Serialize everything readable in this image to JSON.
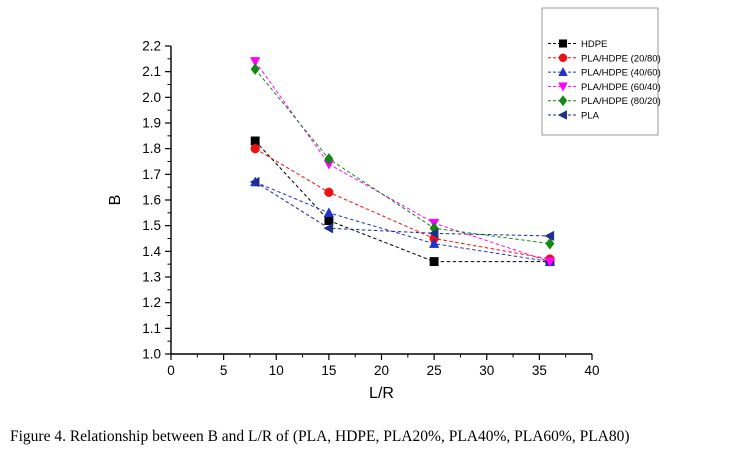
{
  "caption": "Figure 4. Relationship between B and L/R of (PLA, HDPE, PLA20%, PLA40%, PLA60%, PLA80)",
  "chart_data": {
    "type": "line",
    "title": "",
    "xlabel": "L/R",
    "ylabel": "B",
    "xlim": [
      0,
      40
    ],
    "ylim": [
      1.0,
      2.2
    ],
    "x_major_tick_step": 5,
    "x_minor_tick_step": 2.5,
    "y_major_tick_step": 0.1,
    "y_minor_tick_step": 0.05,
    "grid": false,
    "line_style": "dashed",
    "legend_position": "top-right",
    "x": [
      8,
      15,
      25,
      36
    ],
    "series": [
      {
        "name": "HDPE",
        "color": "#000000",
        "marker": "square",
        "values": [
          1.83,
          1.52,
          1.36,
          1.36
        ]
      },
      {
        "name": "PLA/HDPE (20/80)",
        "color": "#EE1111",
        "marker": "circle",
        "values": [
          1.8,
          1.63,
          1.45,
          1.37
        ]
      },
      {
        "name": "PLA/HDPE (40/60)",
        "color": "#2233CC",
        "marker": "triangle-up",
        "values": [
          1.67,
          1.55,
          1.43,
          1.36
        ]
      },
      {
        "name": "PLA/HDPE (60/40)",
        "color": "#FF00FF",
        "marker": "triangle-down",
        "values": [
          2.14,
          1.74,
          1.51,
          1.36
        ]
      },
      {
        "name": "PLA/HDPE (80/20)",
        "color": "#108A10",
        "marker": "diamond",
        "values": [
          2.11,
          1.76,
          1.49,
          1.43
        ]
      },
      {
        "name": "PLA",
        "color": "#1F2D8C",
        "marker": "triangle-left",
        "values": [
          1.67,
          1.49,
          1.47,
          1.46
        ]
      }
    ]
  }
}
